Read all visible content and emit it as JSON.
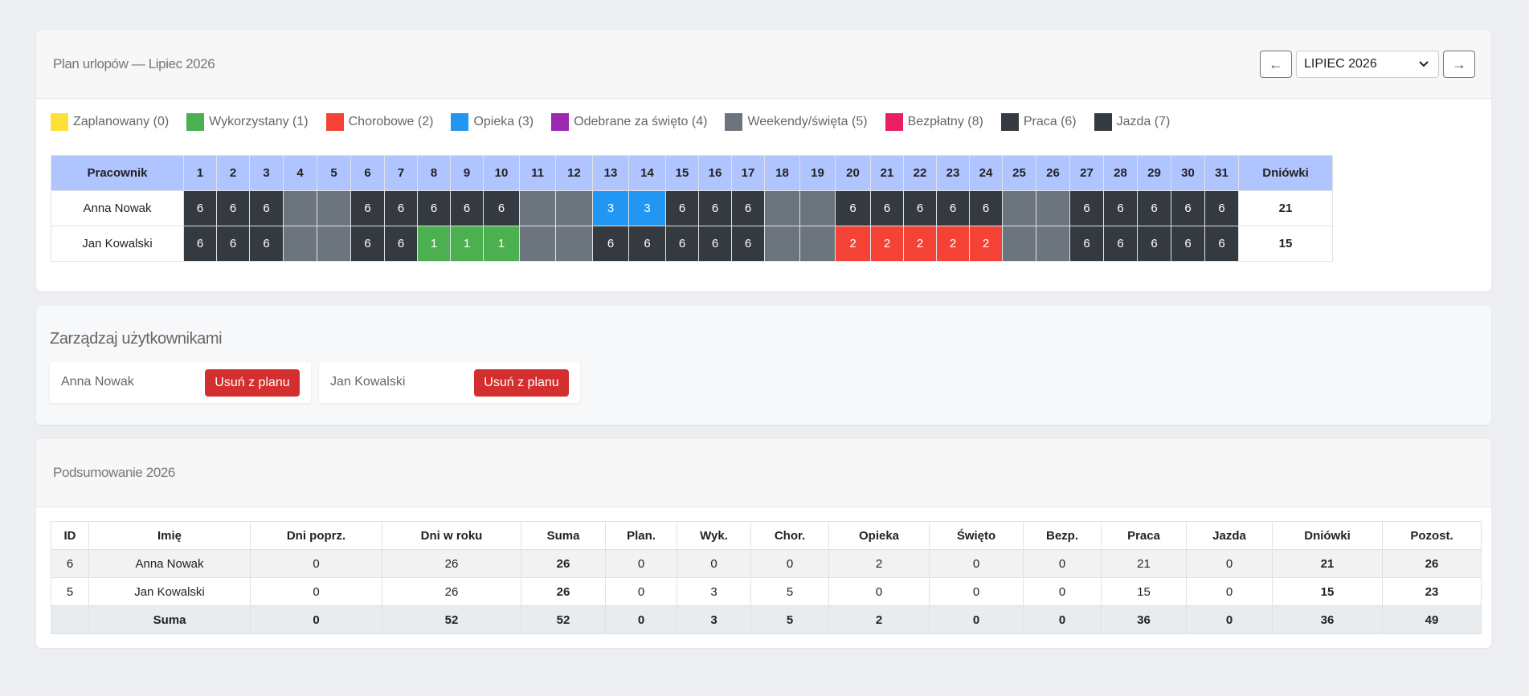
{
  "calendar": {
    "title": "Plan urlopów — Lipiec 2026",
    "prev_label": "←",
    "next_label": "→",
    "month_value": "LIPIEC 2026",
    "legend": [
      {
        "label": "Zaplanowany (0)",
        "color": "#fde03a"
      },
      {
        "label": "Wykorzystany (1)",
        "color": "#4caf50"
      },
      {
        "label": "Chorobowe (2)",
        "color": "#f44336"
      },
      {
        "label": "Opieka (3)",
        "color": "#2196f3"
      },
      {
        "label": "Odebrane za święto (4)",
        "color": "#9c27b0"
      },
      {
        "label": "Weekendy/święta (5)",
        "color": "#6c757d"
      },
      {
        "label": "Bezpłatny (8)",
        "color": "#e91e63"
      },
      {
        "label": "Praca (6)",
        "color": "#343a40"
      },
      {
        "label": "Jazda (7)",
        "color": "#343a40"
      }
    ],
    "header_name": "Pracownik",
    "header_total": "Dniówki",
    "days": [
      "1",
      "2",
      "3",
      "4",
      "5",
      "6",
      "7",
      "8",
      "9",
      "10",
      "11",
      "12",
      "13",
      "14",
      "15",
      "16",
      "17",
      "18",
      "19",
      "20",
      "21",
      "22",
      "23",
      "24",
      "25",
      "26",
      "27",
      "28",
      "29",
      "30",
      "31"
    ],
    "rows": [
      {
        "name": "Anna Nowak",
        "total": "21",
        "cells": [
          "6",
          "6",
          "6",
          "",
          "",
          "6",
          "6",
          "6",
          "6",
          "6",
          "",
          "",
          "3",
          "3",
          "6",
          "6",
          "6",
          "",
          "",
          "6",
          "6",
          "6",
          "6",
          "6",
          "",
          "",
          "6",
          "6",
          "6",
          "6",
          "6"
        ]
      },
      {
        "name": "Jan Kowalski",
        "total": "15",
        "cells": [
          "6",
          "6",
          "6",
          "",
          "",
          "6",
          "6",
          "1",
          "1",
          "1",
          "",
          "",
          "6",
          "6",
          "6",
          "6",
          "6",
          "",
          "",
          "2",
          "2",
          "2",
          "2",
          "2",
          "",
          "",
          "6",
          "6",
          "6",
          "6",
          "6"
        ]
      }
    ],
    "colors": {
      "6": "#343a40",
      "1": "#4caf50",
      "2": "#f44336",
      "3": "#2196f3",
      "": "#6c757d"
    }
  },
  "users": {
    "title": "Zarządzaj użytkownikami",
    "items": [
      {
        "name": "Anna Nowak",
        "button": "Usuń z planu"
      },
      {
        "name": "Jan Kowalski",
        "button": "Usuń z planu"
      }
    ]
  },
  "summary": {
    "title": "Podsumowanie 2026",
    "headers": [
      "ID",
      "Imię",
      "Dni poprz.",
      "Dni w roku",
      "Suma",
      "Plan.",
      "Wyk.",
      "Chor.",
      "Opieka",
      "Święto",
      "Bezp.",
      "Praca",
      "Jazda",
      "Dniówki",
      "Pozost."
    ],
    "rows": [
      [
        "6",
        "Anna Nowak",
        "0",
        "26",
        "26",
        "0",
        "0",
        "0",
        "2",
        "0",
        "0",
        "21",
        "0",
        "21",
        "26"
      ],
      [
        "5",
        "Jan Kowalski",
        "0",
        "26",
        "26",
        "0",
        "3",
        "5",
        "0",
        "0",
        "0",
        "15",
        "0",
        "15",
        "23"
      ]
    ],
    "total_row": [
      "",
      "Suma",
      "0",
      "52",
      "52",
      "0",
      "3",
      "5",
      "2",
      "0",
      "0",
      "36",
      "0",
      "36",
      "49"
    ]
  }
}
